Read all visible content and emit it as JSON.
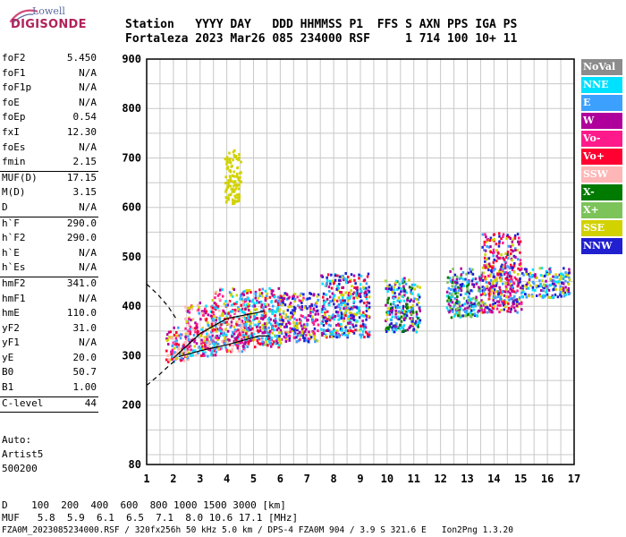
{
  "logo": {
    "line1": "Lowell",
    "line2": "DIGISONDE"
  },
  "header": {
    "row1": "Station   YYYY DAY   DDD HHMMSS P1  FFS S AXN PPS IGA PS",
    "row2": "Fortaleza 2023 Mar26 085 234000 RSF     1 714 100 10+ 11"
  },
  "params_group1": [
    {
      "k": "foF2",
      "v": "5.450"
    },
    {
      "k": "foF1",
      "v": "N/A"
    },
    {
      "k": "foF1p",
      "v": "N/A"
    },
    {
      "k": "foE",
      "v": "N/A"
    },
    {
      "k": "foEp",
      "v": "0.54"
    },
    {
      "k": "fxI",
      "v": "12.30"
    },
    {
      "k": "foEs",
      "v": "N/A"
    },
    {
      "k": "fmin",
      "v": "2.15"
    }
  ],
  "params_group2": [
    {
      "k": "MUF(D)",
      "v": "17.15"
    },
    {
      "k": "M(D)",
      "v": "3.15"
    },
    {
      "k": "D",
      "v": "N/A"
    }
  ],
  "params_group3": [
    {
      "k": "h`F",
      "v": "290.0"
    },
    {
      "k": "h`F2",
      "v": "290.0"
    },
    {
      "k": "h`E",
      "v": "N/A"
    },
    {
      "k": "h`Es",
      "v": "N/A"
    }
  ],
  "params_group4": [
    {
      "k": "hmF2",
      "v": "341.0"
    },
    {
      "k": "hmF1",
      "v": "N/A"
    },
    {
      "k": "hmE",
      "v": "110.0"
    },
    {
      "k": "yF2",
      "v": "31.0"
    },
    {
      "k": "yF1",
      "v": "N/A"
    },
    {
      "k": "yE",
      "v": "20.0"
    },
    {
      "k": "B0",
      "v": "50.7"
    },
    {
      "k": "B1",
      "v": "1.00"
    }
  ],
  "params_group5": [
    {
      "k": "C-level",
      "v": "44"
    }
  ],
  "autoscale": {
    "line1": "Auto:",
    "line2": "Artist5",
    "line3": "500200"
  },
  "legend": [
    {
      "label": "NoVal",
      "color": "#8c8c8c"
    },
    {
      "label": "NNE",
      "color": "#00e0ff"
    },
    {
      "label": "E",
      "color": "#3ca0ff"
    },
    {
      "label": "W",
      "color": "#b0009c"
    },
    {
      "label": "Vo-",
      "color": "#ff1a8c"
    },
    {
      "label": "Vo+",
      "color": "#ff0030"
    },
    {
      "label": "SSW",
      "color": "#ffb6b6"
    },
    {
      "label": "X-",
      "color": "#007a00"
    },
    {
      "label": "X+",
      "color": "#7cc35a"
    },
    {
      "label": "SSE",
      "color": "#d2d200"
    },
    {
      "label": "NNW",
      "color": "#2020d0"
    }
  ],
  "footer": {
    "row1": "D    100  200  400  600  800 1000 1500 3000 [km]",
    "row2": "MUF   5.8  5.9  6.1  6.5  7.1  8.0 10.6 17.1 [MHz]",
    "row3": "FZA0M_2023085234000.RSF / 320fx256h 50 kHz 5.0 km / DPS-4 FZA0M 904 / 3.9 S 321.6 E   Ion2Png 1.3.20"
  },
  "chart_data": {
    "type": "scatter",
    "xlim": [
      1,
      17
    ],
    "ylim": [
      80,
      900
    ],
    "xticks": [
      "1",
      "2",
      "3",
      "4",
      "5",
      "6",
      "7",
      "8",
      "9",
      "10",
      "11",
      "12",
      "13",
      "14",
      "15",
      "16",
      "17"
    ],
    "yticks": [
      "900",
      "800",
      "700",
      "600",
      "500",
      "400",
      "300",
      "200",
      "80"
    ],
    "grid": true,
    "clusters": [
      {
        "x0": 1.7,
        "x1": 2.6,
        "y0": 290,
        "y1": 360,
        "colors": [
          "W",
          "Vo+",
          "Vo-",
          "SSE",
          "SSW",
          "E"
        ]
      },
      {
        "x0": 2.4,
        "x1": 3.6,
        "y0": 300,
        "y1": 410,
        "colors": [
          "W",
          "Vo+",
          "Vo-",
          "SSE",
          "SSW",
          "E",
          "NNE"
        ]
      },
      {
        "x0": 3.4,
        "x1": 4.8,
        "y0": 310,
        "y1": 440,
        "colors": [
          "W",
          "Vo+",
          "Vo-",
          "SSE",
          "E",
          "NNE",
          "SSW"
        ]
      },
      {
        "x0": 4.6,
        "x1": 6.0,
        "y0": 320,
        "y1": 440,
        "colors": [
          "W",
          "Vo+",
          "SSE",
          "E",
          "NNE"
        ]
      },
      {
        "x0": 5.9,
        "x1": 7.4,
        "y0": 330,
        "y1": 430,
        "colors": [
          "W",
          "SSE",
          "E",
          "Vo-",
          "NNW"
        ]
      },
      {
        "x0": 7.5,
        "x1": 9.3,
        "y0": 340,
        "y1": 470,
        "colors": [
          "SSE",
          "E",
          "W",
          "NNE",
          "NNW",
          "Vo+"
        ]
      },
      {
        "x0": 9.9,
        "x1": 11.2,
        "y0": 350,
        "y1": 460,
        "colors": [
          "SSE",
          "E",
          "W",
          "NNE",
          "X-",
          "NNW"
        ]
      },
      {
        "x0": 12.2,
        "x1": 13.5,
        "y0": 380,
        "y1": 480,
        "colors": [
          "W",
          "E",
          "NNE",
          "X-",
          "X+",
          "NNW"
        ]
      },
      {
        "x0": 13.5,
        "x1": 15.0,
        "y0": 390,
        "y1": 550,
        "colors": [
          "W",
          "Vo-",
          "Vo+",
          "SSE",
          "E",
          "NNW"
        ]
      },
      {
        "x0": 15.0,
        "x1": 16.8,
        "y0": 420,
        "y1": 480,
        "colors": [
          "E",
          "W",
          "NNW",
          "SSE",
          "NNE"
        ]
      },
      {
        "x0": 3.9,
        "x1": 4.5,
        "y0": 610,
        "y1": 720,
        "colors": [
          "SSE"
        ]
      }
    ],
    "traces": {
      "solid_upper": [
        [
          2.0,
          295
        ],
        [
          3.0,
          345
        ],
        [
          4.0,
          375
        ],
        [
          5.4,
          390
        ]
      ],
      "solid_lower": [
        [
          2.2,
          298
        ],
        [
          3.0,
          310
        ],
        [
          4.0,
          322
        ],
        [
          5.2,
          340
        ],
        [
          5.6,
          340
        ]
      ],
      "dashed_upper": [
        [
          1.0,
          445
        ],
        [
          1.4,
          425
        ],
        [
          1.8,
          400
        ],
        [
          2.1,
          375
        ]
      ],
      "dashed_lower": [
        [
          1.0,
          240
        ],
        [
          1.4,
          258
        ],
        [
          1.8,
          278
        ],
        [
          2.1,
          292
        ]
      ]
    }
  }
}
